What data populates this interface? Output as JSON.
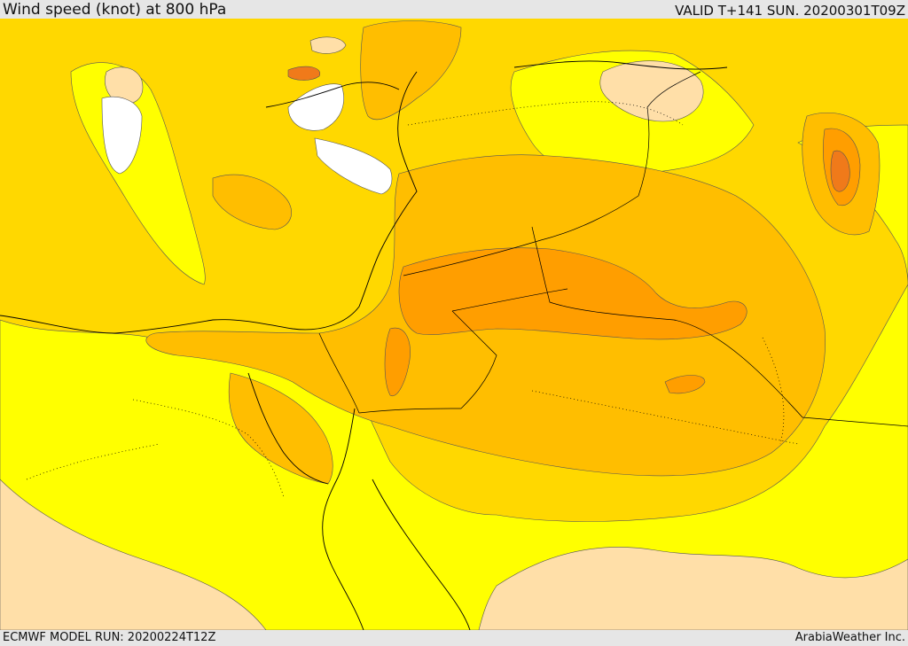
{
  "header": {
    "title": "Wind speed (knot) at 800 hPa",
    "valid": "VALID T+141 SUN. 20200301T09Z"
  },
  "footer": {
    "model_run": "ECMWF MODEL RUN: 20200224T12Z",
    "credit": "ArabiaWeather Inc."
  },
  "map": {
    "colors": {
      "white": "#ffffff",
      "tan": "#ffdfa8",
      "yellow": "#ffff00",
      "gold": "#ffd800",
      "light_orange": "#ffbe00",
      "orange": "#ff9e00",
      "dark_orange": "#f07a1a"
    }
  }
}
